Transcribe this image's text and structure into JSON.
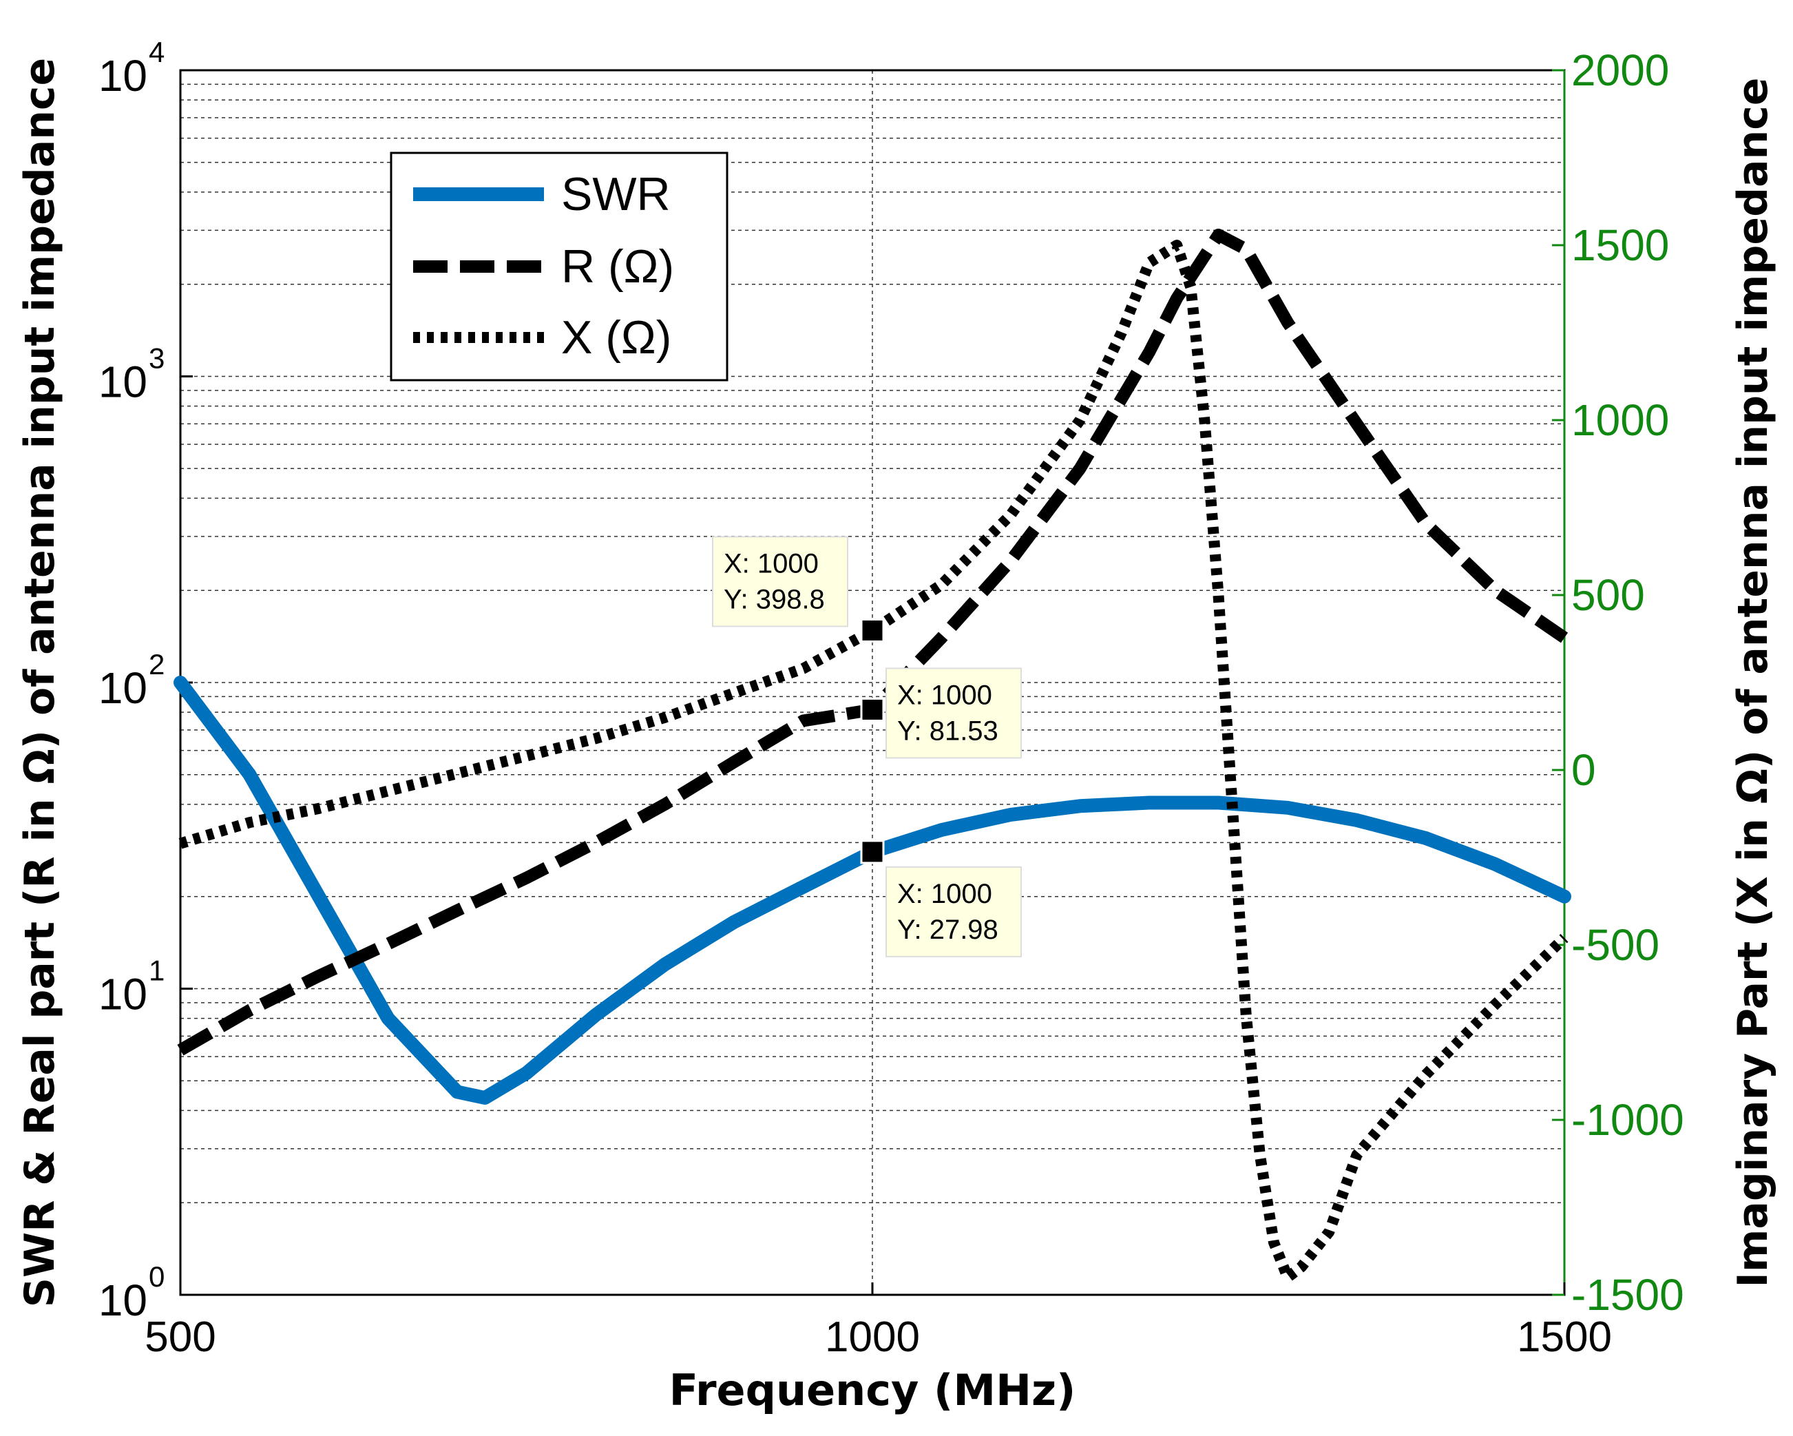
{
  "chart_data": {
    "type": "line",
    "xlabel": "Frequency (MHz)",
    "ylabel_left": "SWR & Real part (R in Ω) of antenna input impedance",
    "ylabel_right": "Imaginary Part (X in Ω) of antenna input impedance",
    "xlim": [
      500,
      1500
    ],
    "ylim_left": [
      1,
      10000
    ],
    "yscale_left": "log",
    "ylim_right": [
      -1500,
      2000
    ],
    "grid": true,
    "legend_position": "top-left",
    "x_ticks": [
      {
        "value": 500,
        "label": "500"
      },
      {
        "value": 1000,
        "label": "1000"
      },
      {
        "value": 1500,
        "label": "1500"
      }
    ],
    "y_left_ticks": [
      {
        "value": 1,
        "base": "10",
        "exp": "0"
      },
      {
        "value": 10,
        "base": "10",
        "exp": "1"
      },
      {
        "value": 100,
        "base": "10",
        "exp": "2"
      },
      {
        "value": 1000,
        "base": "10",
        "exp": "3"
      },
      {
        "value": 10000,
        "base": "10",
        "exp": "4"
      }
    ],
    "y_right_ticks": [
      {
        "value": 2000,
        "label": "2000"
      },
      {
        "value": 1500,
        "label": "1500"
      },
      {
        "value": 1000,
        "label": "1000"
      },
      {
        "value": 500,
        "label": "500"
      },
      {
        "value": 0,
        "label": "0"
      },
      {
        "value": -500,
        "label": "-500"
      },
      {
        "value": -1000,
        "label": "-1000"
      },
      {
        "value": -1500,
        "label": "-1500"
      }
    ],
    "series": [
      {
        "name": "SWR",
        "axis": "left",
        "style": "solid",
        "color": "#0072BD",
        "x": [
          500,
          550,
          600,
          650,
          700,
          720,
          750,
          800,
          850,
          900,
          950,
          1000,
          1050,
          1100,
          1150,
          1200,
          1250,
          1300,
          1350,
          1400,
          1450,
          1500
        ],
        "y": [
          100,
          50,
          20,
          8,
          4.6,
          4.4,
          5.3,
          8.2,
          12,
          16.5,
          21.5,
          27.98,
          33,
          37,
          39.5,
          40.5,
          40.5,
          39,
          35.5,
          31,
          25.5,
          20
        ]
      },
      {
        "name": "R (Ω)",
        "axis": "left",
        "style": "dashed",
        "color": "#000000",
        "x": [
          500,
          550,
          600,
          650,
          700,
          750,
          800,
          850,
          900,
          950,
          1000,
          1050,
          1100,
          1150,
          1200,
          1220,
          1250,
          1270,
          1300,
          1350,
          1400,
          1450,
          1500
        ],
        "y": [
          6.3,
          8.5,
          11,
          14,
          18,
          23,
          30,
          40,
          55,
          75,
          81.53,
          140,
          250,
          500,
          1200,
          1800,
          2900,
          2600,
          1500,
          700,
          330,
          200,
          140
        ]
      },
      {
        "name": "X (Ω)",
        "axis": "right",
        "style": "dotted",
        "color": "#000000",
        "x": [
          500,
          550,
          600,
          650,
          700,
          750,
          800,
          850,
          900,
          950,
          1000,
          1050,
          1100,
          1150,
          1180,
          1200,
          1220,
          1230,
          1240,
          1250,
          1260,
          1270,
          1280,
          1290,
          1300,
          1310,
          1330,
          1350,
          1400,
          1450,
          1500
        ],
        "y": [
          -210,
          -150,
          -110,
          -60,
          -10,
          40,
          90,
          150,
          220,
          290,
          398.8,
          530,
          730,
          1000,
          1250,
          1450,
          1500,
          1380,
          1000,
          500,
          -100,
          -700,
          -1100,
          -1350,
          -1450,
          -1420,
          -1320,
          -1100,
          -870,
          -670,
          -480
        ]
      }
    ],
    "data_tips": [
      {
        "series": "X (Ω)",
        "x": 1000,
        "y": 398.8,
        "x_label": "X: 1000",
        "y_label": "Y: 398.8"
      },
      {
        "series": "R (Ω)",
        "x": 1000,
        "y": 81.53,
        "x_label": "X: 1000",
        "y_label": "Y: 81.53"
      },
      {
        "series": "SWR",
        "x": 1000,
        "y": 27.98,
        "x_label": "X: 1000",
        "y_label": "Y: 27.98"
      }
    ],
    "colors": {
      "swr": "#0072BD",
      "right_axis": "#118811",
      "datatip_bg": "#FFFFE1"
    }
  }
}
